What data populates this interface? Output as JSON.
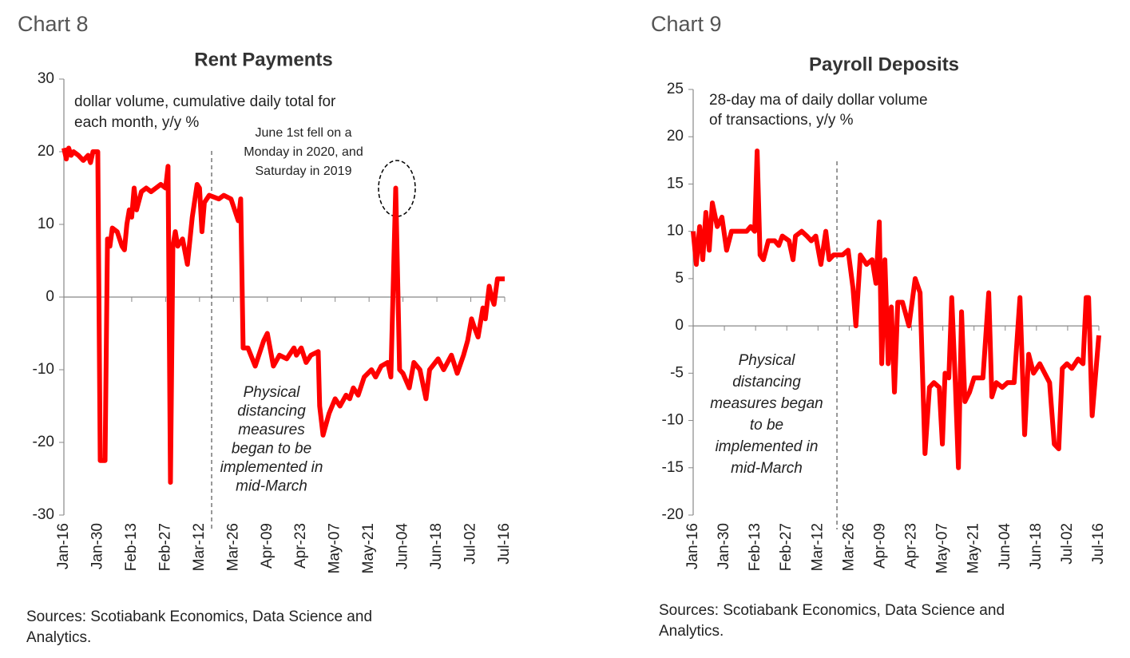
{
  "chart_data": [
    {
      "type": "line",
      "label": "Chart 8",
      "title": "Rent Payments",
      "subtitle": [
        "dollar volume, cumulative daily total for",
        "each month, y/y %"
      ],
      "annotations": [
        [
          "June 1st fell on a",
          "Monday in 2020, and",
          "Saturday in 2019"
        ],
        [
          "Physical",
          "distancing",
          "measures",
          "began to be",
          "implemented in",
          "mid-March"
        ]
      ],
      "source": [
        "Sources: Scotiabank Economics, Data Science and",
        "Analytics."
      ],
      "xlim": [
        0,
        182
      ],
      "ylim": [
        -30,
        30
      ],
      "yticks": [
        -30,
        -20,
        -10,
        0,
        10,
        20,
        30
      ],
      "xticks": [
        {
          "value": 0,
          "label": "Jan-16"
        },
        {
          "value": 14,
          "label": "Jan-30"
        },
        {
          "value": 28,
          "label": "Feb-13"
        },
        {
          "value": 42,
          "label": "Feb-27"
        },
        {
          "value": 56,
          "label": "Mar-12"
        },
        {
          "value": 70,
          "label": "Mar-26"
        },
        {
          "value": 84,
          "label": "Apr-09"
        },
        {
          "value": 98,
          "label": "Apr-23"
        },
        {
          "value": 112,
          "label": "May-07"
        },
        {
          "value": 126,
          "label": "May-21"
        },
        {
          "value": 140,
          "label": "Jun-04"
        },
        {
          "value": 154,
          "label": "Jun-18"
        },
        {
          "value": 168,
          "label": "Jul-02"
        },
        {
          "value": 182,
          "label": "Jul-16"
        }
      ],
      "vline": 61,
      "x": [
        0,
        1,
        2,
        3,
        4,
        6,
        8,
        10,
        11,
        12,
        14,
        15,
        17,
        18,
        19,
        20,
        22,
        24,
        25,
        26,
        27,
        28,
        29,
        30,
        32,
        34,
        36,
        38,
        40,
        42,
        43,
        44,
        45,
        46,
        47,
        49,
        51,
        53,
        55,
        56,
        57,
        58,
        60,
        64,
        66,
        69,
        72,
        73,
        74,
        76,
        79,
        82.5,
        84,
        86.5,
        89,
        92,
        95,
        96,
        98,
        100,
        102,
        105,
        105.6,
        107,
        109.5,
        112,
        114,
        116.5,
        118,
        119.5,
        121.5,
        124,
        127,
        128.7,
        131,
        133.7,
        135,
        137,
        138.6,
        140,
        142.6,
        144.5,
        147,
        149.5,
        151,
        154.5,
        156.8,
        160,
        162.4,
        165,
        166.7,
        168.3,
        169.3,
        171,
        173,
        174,
        175.6,
        176.6,
        177.6,
        179,
        182
      ],
      "series": [
        {
          "name": "Rent Payments",
          "color": "#ff0000",
          "values": [
            20.5,
            19,
            20.5,
            19.5,
            20,
            19.5,
            18.8,
            19.5,
            18.5,
            20,
            20,
            -22.5,
            -22.5,
            8,
            7,
            9.5,
            9,
            7,
            6.5,
            10,
            12,
            11,
            15,
            12,
            14.5,
            15,
            14.5,
            15,
            15.5,
            15,
            18,
            -25.5,
            7,
            9,
            7,
            8,
            4.5,
            11,
            15.5,
            15,
            9,
            13,
            14,
            13.5,
            14,
            13.5,
            10.5,
            13.5,
            -7,
            -7,
            -9.5,
            -6,
            -5,
            -9.5,
            -8,
            -8.5,
            -7,
            -8,
            -7,
            -9,
            -8,
            -7.5,
            -15,
            -19,
            -16,
            -14,
            -15,
            -13.5,
            -14,
            -12.5,
            -13.5,
            -11,
            -10,
            -11,
            -9.5,
            -9,
            -11,
            15,
            -10,
            -10.5,
            -12.5,
            -9,
            -10,
            -14,
            -10,
            -8.5,
            -10,
            -8,
            -10.5,
            -8,
            -6,
            -3,
            -4,
            -5.5,
            -1.5,
            -3,
            1.5,
            0,
            -1,
            2.5,
            2.5
          ]
        }
      ]
    },
    {
      "type": "line",
      "label": "Chart 9",
      "title": "Payroll Deposits",
      "subtitle": [
        "28-day ma of daily dollar volume",
        "of transactions, y/y %"
      ],
      "annotations": [
        [
          "Physical",
          "distancing",
          "measures began",
          "to be",
          "implemented in",
          "mid-March"
        ]
      ],
      "source": [
        "Sources: Scotiabank Economics, Data Science and",
        "Analytics."
      ],
      "xlim": [
        0,
        182
      ],
      "ylim": [
        -20,
        25
      ],
      "yticks": [
        -20,
        -15,
        -10,
        -5,
        0,
        5,
        10,
        15,
        20,
        25
      ],
      "xticks": [
        {
          "value": 0,
          "label": "Jan-16"
        },
        {
          "value": 14,
          "label": "Jan-30"
        },
        {
          "value": 28,
          "label": "Feb-13"
        },
        {
          "value": 42,
          "label": "Feb-27"
        },
        {
          "value": 56,
          "label": "Mar-12"
        },
        {
          "value": 70,
          "label": "Mar-26"
        },
        {
          "value": 84,
          "label": "Apr-09"
        },
        {
          "value": 98,
          "label": "Apr-23"
        },
        {
          "value": 112,
          "label": "May-07"
        },
        {
          "value": 126,
          "label": "May-21"
        },
        {
          "value": 140,
          "label": "Jun-04"
        },
        {
          "value": 154,
          "label": "Jun-18"
        },
        {
          "value": 168,
          "label": "Jul-02"
        },
        {
          "value": 182,
          "label": "Jul-16"
        }
      ],
      "vline": 64.5,
      "x": [
        0,
        1.4,
        2.9,
        4.3,
        5.7,
        7.2,
        8.6,
        10.8,
        12.9,
        15,
        17.2,
        20.4,
        24,
        25.8,
        27.6,
        28.7,
        30,
        31.5,
        33.7,
        36.6,
        38.4,
        40,
        43,
        44.8,
        45.9,
        48.7,
        51,
        53,
        55,
        57.3,
        59.5,
        61,
        63,
        64.5,
        67,
        69.5,
        71.7,
        73,
        75,
        77.8,
        80.3,
        82,
        83.5,
        84.6,
        86,
        87.5,
        88.9,
        90.3,
        91.8,
        93.9,
        96.8,
        99.6,
        101.8,
        104,
        106,
        108,
        110.4,
        111.8,
        113,
        114.7,
        116,
        117.6,
        119,
        120.4,
        121.9,
        124,
        126,
        130,
        132.6,
        134,
        136,
        138.7,
        141,
        144,
        146.6,
        148.7,
        150.5,
        152.7,
        155.5,
        157.7,
        159.9,
        162,
        164,
        165.6,
        167.7,
        169.9,
        172.7,
        174.9,
        176.3,
        177.4,
        179,
        182
      ],
      "series": [
        {
          "name": "Payroll Deposits",
          "color": "#ff0000",
          "values": [
            10,
            6.5,
            10.5,
            7,
            12,
            8,
            13,
            10.5,
            11.5,
            8,
            10,
            10,
            10,
            10.5,
            10,
            18.5,
            7.5,
            7,
            9,
            9,
            8.5,
            9.5,
            9,
            7,
            9.5,
            10,
            9.5,
            9,
            9.5,
            6.5,
            10,
            7,
            7.5,
            7.5,
            7.5,
            8,
            4,
            0,
            7.5,
            6.5,
            7,
            4.5,
            11,
            -4,
            7,
            -4,
            2,
            -7,
            2.5,
            2.5,
            0,
            5,
            3.5,
            -13.5,
            -6.5,
            -6,
            -6.5,
            -12.5,
            -5,
            -5.5,
            3,
            -6,
            -15,
            1.5,
            -8,
            -7,
            -5.5,
            -5.5,
            3.5,
            -7.5,
            -6,
            -6.5,
            -6,
            -6,
            3,
            -11.5,
            -3,
            -5,
            -4,
            -5,
            -6,
            -12.5,
            -13,
            -4.5,
            -4,
            -4.5,
            -3.5,
            -4,
            3,
            3,
            -9.5,
            -1
          ]
        }
      ]
    }
  ]
}
